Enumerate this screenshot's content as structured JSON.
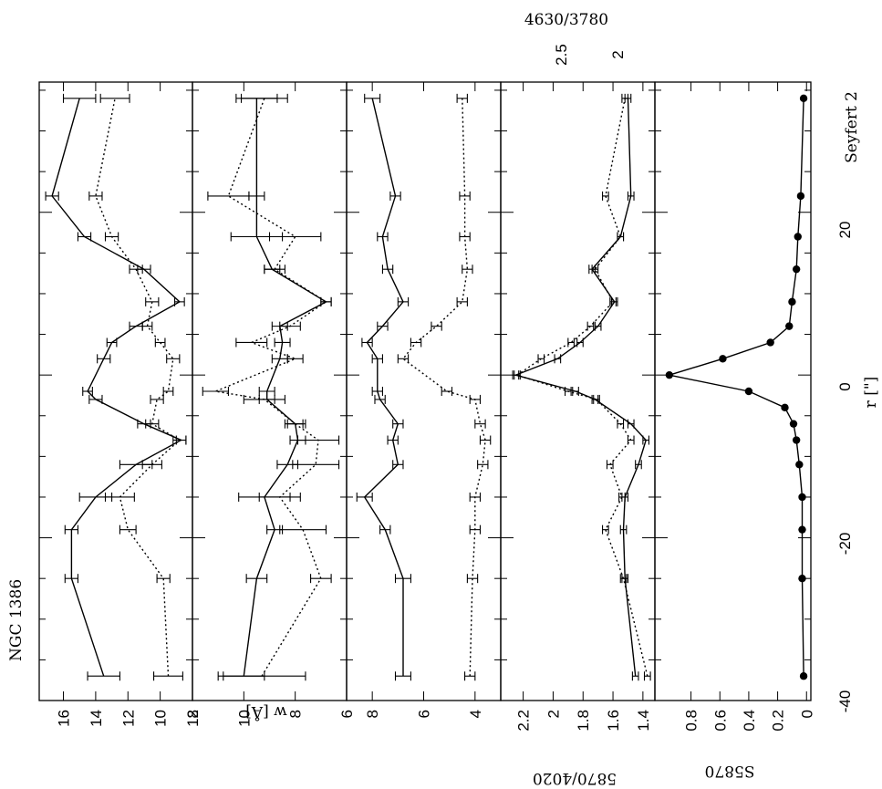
{
  "chart_data": {
    "type": "line",
    "orientation": "rotated-90",
    "object_label": "NGC 1386",
    "class_label": "Seyfert 2",
    "x_axis": {
      "label": "r [\"]",
      "ticks": [
        "-40",
        "-20",
        "0",
        "20"
      ],
      "range": [
        -40,
        36
      ]
    },
    "top_axis": {
      "label": "4630/3780",
      "ticks": [
        "2.5",
        "2"
      ]
    },
    "panels": [
      {
        "id": "w1",
        "ylabel": "",
        "range": [
          8,
          17.5
        ],
        "ticks": [
          "16",
          "14",
          "12",
          "10",
          "8"
        ],
        "series": [
          {
            "style": "solid",
            "x": [
              -37,
              -25,
              -19,
              -15,
              -11,
              -8,
              -6,
              -3,
              -2,
              2,
              4,
              6,
              9,
              13,
              17,
              22,
              34
            ],
            "y": [
              13.5,
              15.5,
              15.5,
              14,
              11.5,
              8.7,
              11,
              14,
              14.5,
              13.5,
              13,
              11.5,
              8.8,
              11,
              14.7,
              16.7,
              15
            ],
            "err": [
              1,
              0.4,
              0.4,
              1,
              1,
              0.3,
              0.4,
              0.4,
              0.3,
              0.4,
              0.3,
              0.4,
              0.3,
              0.4,
              0.4,
              0.4,
              1
            ]
          },
          {
            "style": "dotted",
            "x": [
              -37,
              -25,
              -19,
              -15,
              -11,
              -8,
              -6,
              -3,
              -2,
              2,
              4,
              6,
              9,
              13,
              17,
              22,
              34
            ],
            "y": [
              9.5,
              9.8,
              12,
              12.5,
              10.5,
              8.8,
              10.5,
              10.2,
              9.5,
              9.2,
              10,
              10.8,
              10.5,
              11.5,
              13,
              14,
              12.8
            ],
            "err": [
              0.9,
              0.4,
              0.5,
              0.9,
              0.6,
              0.4,
              0.4,
              0.4,
              0.3,
              0.4,
              0.3,
              0.3,
              0.4,
              0.4,
              0.4,
              0.4,
              0.9
            ]
          }
        ]
      },
      {
        "id": "w2",
        "ylabel": "w [Å]",
        "range": [
          6,
          12
        ],
        "ticks": [
          "12",
          "10",
          "8",
          "6"
        ],
        "series": [
          {
            "style": "solid",
            "x": [
              -37,
              -25,
              -19,
              -15,
              -11,
              -8,
              -6,
              -3,
              -2,
              2,
              4,
              6,
              9,
              13,
              17,
              22,
              34
            ],
            "y": [
              10,
              9.5,
              8.8,
              9.2,
              8.3,
              7.9,
              8,
              9.1,
              9.1,
              8.6,
              8.5,
              8.6,
              6.8,
              8.9,
              9.5,
              9.5,
              9.5
            ],
            "err": [
              0.8,
              0.4,
              0.3,
              1,
              0.4,
              0.3,
              0.3,
              0.3,
              0.3,
              0.3,
              0.3,
              0.3,
              0.2,
              0.3,
              1,
              0.3,
              0.8
            ]
          },
          {
            "style": "dotted",
            "x": [
              -37,
              -25,
              -19,
              -15,
              -11,
              -8,
              -6,
              -3,
              -2,
              2,
              4,
              6,
              9,
              13,
              17,
              22,
              34
            ],
            "y": [
              9.3,
              7,
              7.7,
              8.6,
              7.2,
              7.1,
              8,
              9.2,
              11.1,
              8,
              9.7,
              8.2,
              6.8,
              8.8,
              8,
              10.6,
              9.2
            ],
            "err": [
              1.7,
              0.4,
              0.9,
              0.8,
              0.9,
              0.8,
              0.4,
              0.8,
              0.5,
              0.3,
              0.6,
              0.4,
              0.2,
              0.4,
              1,
              0.8,
              0.9
            ]
          }
        ]
      },
      {
        "id": "w3",
        "ylabel": "",
        "range": [
          3,
          9
        ],
        "ticks": [
          "8",
          "6",
          "4"
        ],
        "series": [
          {
            "style": "solid",
            "x": [
              -37,
              -25,
              -19,
              -15,
              -11,
              -8,
              -6,
              -3,
              -2,
              2,
              4,
              6,
              9,
              13,
              17,
              22,
              34
            ],
            "y": [
              6.8,
              6.8,
              7.5,
              8.3,
              7,
              7.2,
              7,
              7.7,
              7.8,
              7.8,
              8.2,
              7.6,
              6.8,
              7.4,
              7.6,
              7.1,
              8
            ],
            "err": [
              0.3,
              0.3,
              0.2,
              0.3,
              0.2,
              0.2,
              0.2,
              0.2,
              0.2,
              0.2,
              0.2,
              0.2,
              0.2,
              0.2,
              0.2,
              0.2,
              0.3
            ]
          },
          {
            "style": "dotted",
            "x": [
              -37,
              -25,
              -19,
              -15,
              -11,
              -8,
              -6,
              -3,
              -2,
              2,
              4,
              6,
              9,
              13,
              17,
              22,
              34
            ],
            "y": [
              4.2,
              4.1,
              4,
              4,
              3.7,
              3.6,
              3.8,
              4,
              5.1,
              6.8,
              6.3,
              5.5,
              4.5,
              4.3,
              4.4,
              4.4,
              4.5
            ],
            "err": [
              0.2,
              0.2,
              0.2,
              0.2,
              0.2,
              0.2,
              0.2,
              0.2,
              0.2,
              0.2,
              0.2,
              0.2,
              0.2,
              0.2,
              0.2,
              0.2,
              0.2
            ]
          }
        ]
      },
      {
        "id": "ratio",
        "ylabel": "5870/4020",
        "range": [
          1.32,
          2.35
        ],
        "ticks": [
          "2.2",
          "2",
          "1.8",
          "1.6",
          "1.4"
        ],
        "series": [
          {
            "style": "solid",
            "x": [
              -37,
              -25,
              -19,
              -15,
              -11,
              -8,
              -6,
              -3,
              -2,
              0,
              2,
              4,
              6,
              9,
              13,
              17,
              22,
              34
            ],
            "y": [
              1.45,
              1.52,
              1.53,
              1.52,
              1.43,
              1.38,
              1.48,
              1.72,
              1.85,
              2.25,
              1.97,
              1.82,
              1.7,
              1.59,
              1.74,
              1.55,
              1.48,
              1.5
            ],
            "err": [
              0.02,
              0.02,
              0.02,
              0.02,
              0.02,
              0.02,
              0.02,
              0.02,
              0.02,
              0.02,
              0.02,
              0.02,
              0.02,
              0.02,
              0.02,
              0.02,
              0.02,
              0.02
            ]
          },
          {
            "style": "dotted",
            "x": [
              -37,
              -25,
              -19,
              -15,
              -11,
              -8,
              -6,
              -3,
              -2,
              0,
              2,
              4,
              6,
              9,
              13,
              17,
              22,
              34
            ],
            "y": [
              1.37,
              1.53,
              1.65,
              1.54,
              1.62,
              1.48,
              1.55,
              1.71,
              1.9,
              2.24,
              2.08,
              1.88,
              1.75,
              1.6,
              1.72,
              1.55,
              1.65,
              1.52
            ],
            "err": [
              0.02,
              0.02,
              0.02,
              0.02,
              0.02,
              0.02,
              0.02,
              0.02,
              0.02,
              0.02,
              0.02,
              0.02,
              0.02,
              0.02,
              0.02,
              0.02,
              0.02,
              0.02
            ]
          }
        ]
      },
      {
        "id": "s5870",
        "ylabel": "S5870",
        "range": [
          -0.03,
          1.05
        ],
        "ticks": [
          "0.8",
          "0.6",
          "0.4",
          "0.2",
          "0"
        ],
        "series": [
          {
            "style": "solid",
            "markers": "filled-circle",
            "x": [
              -37,
              -25,
              -19,
              -15,
              -11,
              -8,
              -6,
              -4,
              -2,
              0,
              2,
              4,
              6,
              9,
              13,
              17,
              22,
              34
            ],
            "y": [
              0.02,
              0.03,
              0.03,
              0.03,
              0.05,
              0.07,
              0.09,
              0.15,
              0.4,
              0.95,
              0.58,
              0.25,
              0.12,
              0.1,
              0.07,
              0.06,
              0.04,
              0.02
            ]
          }
        ]
      }
    ]
  }
}
